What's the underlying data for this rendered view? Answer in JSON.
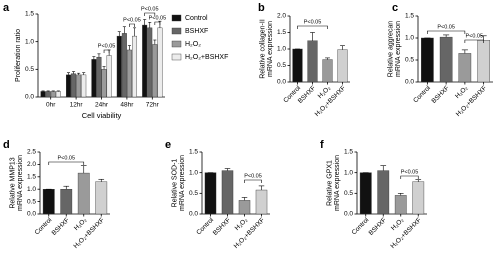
{
  "chart_data": [
    {
      "type": "grouped-bar",
      "label": "a",
      "ylabel": [
        "Proliferation ratio"
      ],
      "xlabel": "Cell viability",
      "categories": [
        "0hr",
        "12hr",
        "24hr",
        "48hr",
        "72hr"
      ],
      "series": [
        {
          "name": "Control",
          "color": "#111111",
          "values": [
            0.1,
            0.4,
            0.68,
            1.1,
            1.3
          ],
          "errors": [
            0.01,
            0.04,
            0.05,
            0.08,
            0.1
          ]
        },
        {
          "name": "BSHXF",
          "color": "#666666",
          "values": [
            0.1,
            0.42,
            0.72,
            1.15,
            1.25
          ],
          "errors": [
            0.01,
            0.04,
            0.06,
            0.12,
            0.1
          ]
        },
        {
          "name": "H₂O₂",
          "color": "#9a9a9a",
          "values": [
            0.1,
            0.4,
            0.5,
            0.85,
            0.95
          ],
          "errors": [
            0.01,
            0.03,
            0.05,
            0.08,
            0.08
          ]
        },
        {
          "name": "H₂O₂+BSHXF",
          "color": "#ececec",
          "values": [
            0.1,
            0.4,
            0.75,
            1.1,
            1.25
          ],
          "errors": [
            0.01,
            0.04,
            0.1,
            0.15,
            0.12
          ]
        }
      ],
      "ylim": [
        0,
        1.5
      ],
      "yticks": [
        {
          "value": 0,
          "label": "0.0"
        },
        {
          "value": 0.5,
          "label": "0.5"
        },
        {
          "value": 1,
          "label": "1.0"
        },
        {
          "value": 1.5,
          "label": "1.5"
        }
      ],
      "annotations": [
        "P<0.05",
        "P<0.05",
        "P<0.05",
        "P<0.05"
      ]
    },
    {
      "type": "bar",
      "label": "b",
      "ylabel": [
        "Relative collagen-II",
        "mRNA expression"
      ],
      "categories": [
        "Control",
        "BSHXF",
        "H₂O₂",
        "H₂O₂+BSHXF"
      ],
      "colors": [
        "#111111",
        "#666666",
        "#9a9a9a",
        "#d0d0d0"
      ],
      "values": [
        1.0,
        1.25,
        0.68,
        0.98
      ],
      "errors": [
        0,
        0.25,
        0.05,
        0.12
      ],
      "ylim": [
        0,
        2
      ],
      "yticks": [
        {
          "value": 0,
          "label": "0.0"
        },
        {
          "value": 0.5,
          "label": "0.5"
        },
        {
          "value": 1,
          "label": "1.0"
        },
        {
          "value": 1.5,
          "label": "1.5"
        },
        {
          "value": 2,
          "label": "2.0"
        }
      ],
      "annotations": [
        "P<0.05"
      ]
    },
    {
      "type": "bar",
      "label": "c",
      "ylabel": [
        "Relative aggrecan",
        "mRNA expression"
      ],
      "categories": [
        "Control",
        "BSHXF",
        "H₂O₂",
        "H₂O₂+BSHXF"
      ],
      "colors": [
        "#111111",
        "#666666",
        "#9a9a9a",
        "#d0d0d0"
      ],
      "values": [
        1.0,
        1.02,
        0.65,
        0.95
      ],
      "errors": [
        0,
        0.05,
        0.08,
        0.1
      ],
      "ylim": [
        0,
        1.5
      ],
      "yticks": [
        {
          "value": 0,
          "label": "0.0"
        },
        {
          "value": 0.5,
          "label": "0.5"
        },
        {
          "value": 1,
          "label": "1.0"
        },
        {
          "value": 1.5,
          "label": "1.5"
        }
      ],
      "annotations": [
        "P<0.05",
        "P<0.05"
      ]
    },
    {
      "type": "bar",
      "label": "d",
      "ylabel": [
        "Relative MMP13",
        "mRNA expression"
      ],
      "categories": [
        "Control",
        "BSHXF",
        "H₂O₂",
        "H₂O₂+BSHXF"
      ],
      "colors": [
        "#111111",
        "#666666",
        "#9a9a9a",
        "#d0d0d0"
      ],
      "values": [
        1.0,
        1.0,
        1.65,
        1.3
      ],
      "errors": [
        0,
        0.12,
        0.3,
        0.1
      ],
      "ylim": [
        0,
        2.5
      ],
      "yticks": [
        {
          "value": 0,
          "label": "0.0"
        },
        {
          "value": 0.5,
          "label": "0.5"
        },
        {
          "value": 1,
          "label": "1.0"
        },
        {
          "value": 1.5,
          "label": "1.5"
        },
        {
          "value": 2,
          "label": "2.0"
        },
        {
          "value": 2.5,
          "label": "2.5"
        }
      ],
      "annotations": [
        "P<0.05"
      ]
    },
    {
      "type": "bar",
      "label": "e",
      "ylabel": [
        "Relative SOD-1",
        "mRNA expression"
      ],
      "categories": [
        "Control",
        "BSHXF",
        "H₂O₂",
        "H₂O₂+BSHXF"
      ],
      "colors": [
        "#111111",
        "#666666",
        "#9a9a9a",
        "#d0d0d0"
      ],
      "values": [
        1.0,
        1.05,
        0.33,
        0.58
      ],
      "errors": [
        0,
        0.05,
        0.07,
        0.1
      ],
      "ylim": [
        0,
        1.5
      ],
      "yticks": [
        {
          "value": 0,
          "label": "0.0"
        },
        {
          "value": 0.5,
          "label": "0.5"
        },
        {
          "value": 1,
          "label": "1.0"
        },
        {
          "value": 1.5,
          "label": "1.5"
        }
      ],
      "annotations": [
        "P<0.05"
      ]
    },
    {
      "type": "bar",
      "label": "f",
      "ylabel": [
        "Relative GPX1",
        "mRNA expression"
      ],
      "categories": [
        "Control",
        "BSHXF",
        "H₂O₂",
        "H₂O₂+BSHXF"
      ],
      "colors": [
        "#111111",
        "#666666",
        "#9a9a9a",
        "#d0d0d0"
      ],
      "values": [
        1.0,
        1.05,
        0.45,
        0.78
      ],
      "errors": [
        0,
        0.12,
        0.05,
        0.05
      ],
      "ylim": [
        0,
        1.5
      ],
      "yticks": [
        {
          "value": 0,
          "label": "0.0"
        },
        {
          "value": 0.5,
          "label": "0.5"
        },
        {
          "value": 1,
          "label": "1.0"
        },
        {
          "value": 1.5,
          "label": "1.5"
        }
      ],
      "annotations": [
        "P<0.05"
      ]
    }
  ]
}
